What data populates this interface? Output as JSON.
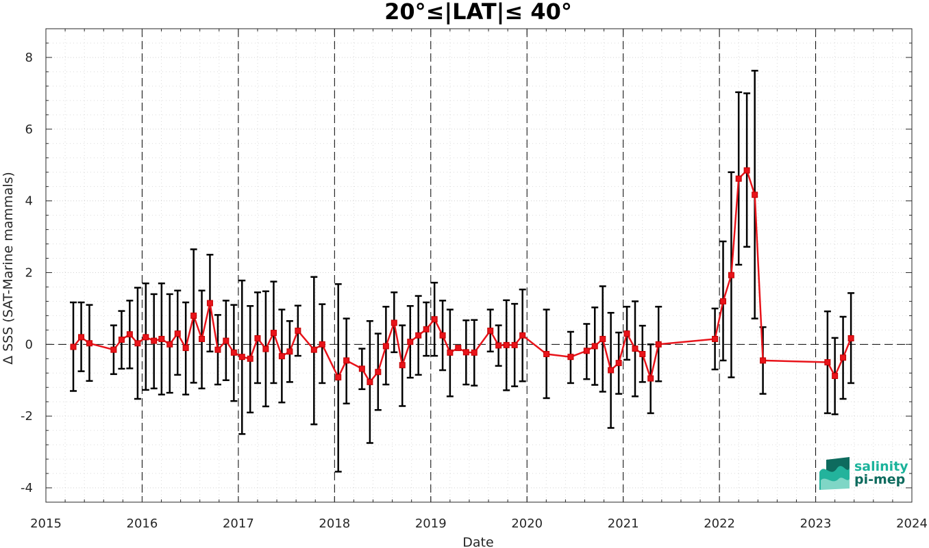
{
  "chart_data": {
    "type": "line",
    "title": "20°≤|LAT|≤ 40°",
    "xlabel": "Date",
    "ylabel": "Δ SSS (SAT-Marine mammals)",
    "xlim": [
      "2015-01-01",
      "2024-01-01"
    ],
    "ylim": [
      -4.4,
      8.8
    ],
    "x_ticks": [
      "2015",
      "2016",
      "2017",
      "2018",
      "2019",
      "2020",
      "2021",
      "2022",
      "2023",
      "2024"
    ],
    "y_ticks": [
      -4,
      -2,
      0,
      2,
      4,
      6,
      8
    ],
    "grid": "dotted major and minor",
    "reference_line": 0,
    "year_boundaries": [
      "2016-01-01",
      "2017-01-01",
      "2018-01-01",
      "2019-01-01",
      "2020-01-01",
      "2021-01-01",
      "2022-01-01",
      "2023-01-01"
    ],
    "series": [
      {
        "color": "#e8131a",
        "errorbar_color": "#000000",
        "marker": "square",
        "points": [
          {
            "x": "2015-04-15",
            "y": -0.07,
            "lo": -1.3,
            "hi": 1.17
          },
          {
            "x": "2015-05-15",
            "y": 0.2,
            "lo": -0.75,
            "hi": 1.17
          },
          {
            "x": "2015-06-15",
            "y": 0.03,
            "lo": -1.02,
            "hi": 1.1
          },
          {
            "x": "2015-09-15",
            "y": -0.15,
            "lo": -0.83,
            "hi": 0.53
          },
          {
            "x": "2015-10-15",
            "y": 0.13,
            "lo": -0.68,
            "hi": 0.93
          },
          {
            "x": "2015-11-15",
            "y": 0.28,
            "lo": -0.67,
            "hi": 1.22
          },
          {
            "x": "2015-12-15",
            "y": 0.03,
            "lo": -1.52,
            "hi": 1.58
          },
          {
            "x": "2016-01-15",
            "y": 0.2,
            "lo": -1.27,
            "hi": 1.7
          },
          {
            "x": "2016-02-15",
            "y": 0.1,
            "lo": -1.23,
            "hi": 1.4
          },
          {
            "x": "2016-03-15",
            "y": 0.15,
            "lo": -1.4,
            "hi": 1.7
          },
          {
            "x": "2016-04-15",
            "y": 0.0,
            "lo": -1.35,
            "hi": 1.4
          },
          {
            "x": "2016-05-15",
            "y": 0.3,
            "lo": -0.85,
            "hi": 1.5
          },
          {
            "x": "2016-06-15",
            "y": -0.1,
            "lo": -1.4,
            "hi": 1.17
          },
          {
            "x": "2016-07-15",
            "y": 0.8,
            "lo": -1.07,
            "hi": 2.65
          },
          {
            "x": "2016-08-15",
            "y": 0.15,
            "lo": -1.23,
            "hi": 1.5
          },
          {
            "x": "2016-09-15",
            "y": 1.15,
            "lo": -0.2,
            "hi": 2.5
          },
          {
            "x": "2016-10-15",
            "y": -0.15,
            "lo": -1.12,
            "hi": 0.82
          },
          {
            "x": "2016-11-15",
            "y": 0.1,
            "lo": -1.0,
            "hi": 1.22
          },
          {
            "x": "2016-12-15",
            "y": -0.23,
            "lo": -1.58,
            "hi": 1.1
          },
          {
            "x": "2017-01-15",
            "y": -0.35,
            "lo": -2.5,
            "hi": 1.78
          },
          {
            "x": "2017-02-15",
            "y": -0.4,
            "lo": -1.9,
            "hi": 1.07
          },
          {
            "x": "2017-03-15",
            "y": 0.17,
            "lo": -1.08,
            "hi": 1.45
          },
          {
            "x": "2017-04-15",
            "y": -0.13,
            "lo": -1.73,
            "hi": 1.48
          },
          {
            "x": "2017-05-15",
            "y": 0.32,
            "lo": -1.08,
            "hi": 1.75
          },
          {
            "x": "2017-06-15",
            "y": -0.33,
            "lo": -1.62,
            "hi": 0.97
          },
          {
            "x": "2017-07-15",
            "y": -0.2,
            "lo": -1.05,
            "hi": 0.65
          },
          {
            "x": "2017-08-15",
            "y": 0.38,
            "lo": -0.32,
            "hi": 1.08
          },
          {
            "x": "2017-10-15",
            "y": -0.15,
            "lo": -2.23,
            "hi": 1.88
          },
          {
            "x": "2017-11-15",
            "y": 0.0,
            "lo": -1.08,
            "hi": 1.12
          },
          {
            "x": "2018-01-15",
            "y": -0.92,
            "lo": -3.55,
            "hi": 1.68
          },
          {
            "x": "2018-02-15",
            "y": -0.45,
            "lo": -1.65,
            "hi": 0.72
          },
          {
            "x": "2018-04-15",
            "y": -0.68,
            "lo": -1.25,
            "hi": -0.12
          },
          {
            "x": "2018-05-15",
            "y": -1.05,
            "lo": -2.75,
            "hi": 0.65
          },
          {
            "x": "2018-06-15",
            "y": -0.77,
            "lo": -1.83,
            "hi": 0.3
          },
          {
            "x": "2018-07-15",
            "y": -0.05,
            "lo": -1.12,
            "hi": 1.05
          },
          {
            "x": "2018-08-15",
            "y": 0.6,
            "lo": -0.22,
            "hi": 1.45
          },
          {
            "x": "2018-09-15",
            "y": -0.58,
            "lo": -1.72,
            "hi": 0.53
          },
          {
            "x": "2018-10-15",
            "y": 0.07,
            "lo": -0.93,
            "hi": 1.07
          },
          {
            "x": "2018-11-15",
            "y": 0.25,
            "lo": -0.85,
            "hi": 1.35
          },
          {
            "x": "2018-12-15",
            "y": 0.42,
            "lo": -0.32,
            "hi": 1.17
          },
          {
            "x": "2019-01-15",
            "y": 0.7,
            "lo": -0.32,
            "hi": 1.72
          },
          {
            "x": "2019-02-15",
            "y": 0.25,
            "lo": -0.72,
            "hi": 1.22
          },
          {
            "x": "2019-03-15",
            "y": -0.23,
            "lo": -1.45,
            "hi": 0.97
          },
          {
            "x": "2019-04-15",
            "y": -0.1,
            "lo": -0.1,
            "hi": -0.1
          },
          {
            "x": "2019-05-15",
            "y": -0.22,
            "lo": -1.12,
            "hi": 0.67
          },
          {
            "x": "2019-06-15",
            "y": -0.23,
            "lo": -1.15,
            "hi": 0.68
          },
          {
            "x": "2019-08-15",
            "y": 0.38,
            "lo": -0.2,
            "hi": 0.97
          },
          {
            "x": "2019-09-15",
            "y": -0.03,
            "lo": -0.6,
            "hi": 0.53
          },
          {
            "x": "2019-10-15",
            "y": -0.02,
            "lo": -1.28,
            "hi": 1.23
          },
          {
            "x": "2019-11-15",
            "y": -0.02,
            "lo": -1.17,
            "hi": 1.13
          },
          {
            "x": "2019-12-15",
            "y": 0.25,
            "lo": -1.03,
            "hi": 1.53
          },
          {
            "x": "2020-03-15",
            "y": -0.27,
            "lo": -1.5,
            "hi": 0.97
          },
          {
            "x": "2020-06-15",
            "y": -0.35,
            "lo": -1.08,
            "hi": 0.35
          },
          {
            "x": "2020-08-15",
            "y": -0.18,
            "lo": -0.97,
            "hi": 0.57
          },
          {
            "x": "2020-09-15",
            "y": -0.05,
            "lo": -1.13,
            "hi": 1.03
          },
          {
            "x": "2020-10-15",
            "y": 0.15,
            "lo": -1.32,
            "hi": 1.62
          },
          {
            "x": "2020-11-15",
            "y": -0.72,
            "lo": -2.33,
            "hi": 0.88
          },
          {
            "x": "2020-12-15",
            "y": -0.52,
            "lo": -1.38,
            "hi": 0.33
          },
          {
            "x": "2021-01-15",
            "y": 0.3,
            "lo": -0.43,
            "hi": 1.05
          },
          {
            "x": "2021-02-15",
            "y": -0.12,
            "lo": -1.45,
            "hi": 1.2
          },
          {
            "x": "2021-03-15",
            "y": -0.27,
            "lo": -1.05,
            "hi": 0.52
          },
          {
            "x": "2021-04-15",
            "y": -0.95,
            "lo": -1.92,
            "hi": 0.0
          },
          {
            "x": "2021-05-15",
            "y": 0.0,
            "lo": -1.03,
            "hi": 1.05
          },
          {
            "x": "2021-12-15",
            "y": 0.15,
            "lo": -0.7,
            "hi": 1.0
          },
          {
            "x": "2022-01-15",
            "y": 1.2,
            "lo": -0.45,
            "hi": 2.87
          },
          {
            "x": "2022-02-15",
            "y": 1.93,
            "lo": -0.92,
            "hi": 4.8
          },
          {
            "x": "2022-03-15",
            "y": 4.62,
            "lo": 2.22,
            "hi": 7.03
          },
          {
            "x": "2022-04-15",
            "y": 4.85,
            "lo": 2.72,
            "hi": 7.0
          },
          {
            "x": "2022-05-15",
            "y": 4.17,
            "lo": 0.72,
            "hi": 7.63
          },
          {
            "x": "2022-06-15",
            "y": -0.45,
            "lo": -1.38,
            "hi": 0.48
          },
          {
            "x": "2023-02-15",
            "y": -0.5,
            "lo": -1.92,
            "hi": 0.92
          },
          {
            "x": "2023-03-15",
            "y": -0.88,
            "lo": -1.95,
            "hi": 0.18
          },
          {
            "x": "2023-04-15",
            "y": -0.37,
            "lo": -1.52,
            "hi": 0.77
          },
          {
            "x": "2023-05-15",
            "y": 0.17,
            "lo": -1.08,
            "hi": 1.43
          }
        ]
      }
    ]
  },
  "logo": {
    "line1": "salinity",
    "line2": "pi-mep",
    "color": "#1bb39b",
    "dark_color": "#0e6b5e"
  }
}
